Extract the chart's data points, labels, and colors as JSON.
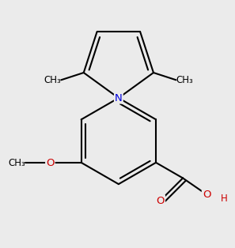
{
  "bg_color": "#ebebeb",
  "bond_color": "#000000",
  "bond_lw": 1.5,
  "N_color": "#0000dd",
  "O_color": "#cc0000",
  "font_size": 9.5,
  "small_font_size": 8.5,
  "xlim": [
    -2.2,
    2.2
  ],
  "ylim": [
    -2.8,
    2.6
  ],
  "bl": 1.0
}
